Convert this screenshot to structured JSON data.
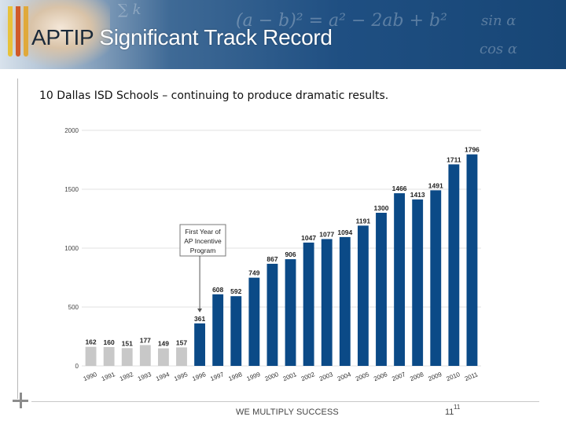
{
  "header": {
    "title_part1": "APTIP",
    "title_part2": " Significant Track Record"
  },
  "subtitle": "10 Dallas ISD Schools – continuing to produce dramatic results.",
  "footer": {
    "tagline": "WE MULTIPLY SUCCESS",
    "page_number": "11",
    "page_number_superscript": "11"
  },
  "colors": {
    "banner_blue": "#1f4f82",
    "pre_program_bar": "#c8c8c8",
    "program_bar": "#0b4a87"
  },
  "chart_data": {
    "type": "bar",
    "title": "",
    "xlabel": "",
    "ylabel": "",
    "ylim": [
      0,
      2000
    ],
    "yticks": [
      0,
      500,
      1000,
      1500,
      2000
    ],
    "grid": true,
    "categories": [
      "1990",
      "1991",
      "1992",
      "1993",
      "1994",
      "1995",
      "1996",
      "1997",
      "1998",
      "1999",
      "2000",
      "2001",
      "2002",
      "2003",
      "2004",
      "2005",
      "2006",
      "2007",
      "2008",
      "2009",
      "2010",
      "2011"
    ],
    "values": [
      162,
      160,
      151,
      177,
      149,
      157,
      361,
      608,
      592,
      749,
      867,
      906,
      1047,
      1077,
      1094,
      1191,
      1300,
      1466,
      1413,
      1491,
      1711,
      1796
    ],
    "program_start_index": 6,
    "annotation": {
      "label": "First Year of AP Incentive Program",
      "lines": [
        "First Year of",
        "AP Incentive",
        "Program"
      ],
      "points_to": "1996"
    }
  }
}
